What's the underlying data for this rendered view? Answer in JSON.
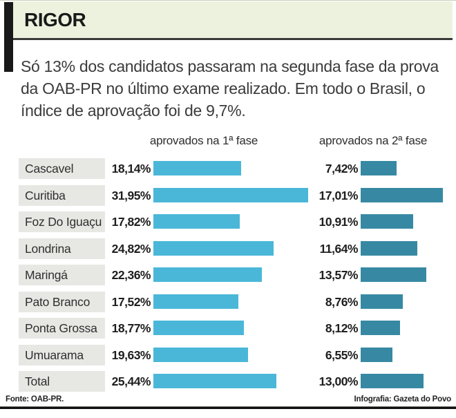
{
  "header": {
    "title": "RIGOR",
    "subtitle": "Só 13% dos candidatos passaram na segunda fase da prova da OAB-PR no último exame realizado. Em todo o Brasil, o índice de aprovação foi de 9,7%."
  },
  "chart_data": {
    "type": "bar",
    "orientation": "horizontal",
    "title": "RIGOR",
    "categories": [
      "Cascavel",
      "Curitiba",
      "Foz Do Iguaçu",
      "Londrina",
      "Maringá",
      "Pato Branco",
      "Ponta Grossa",
      "Umuarama",
      "Total"
    ],
    "series": [
      {
        "name": "aprovados na 1ª fase",
        "values": [
          18.14,
          31.95,
          17.82,
          24.82,
          22.36,
          17.52,
          18.77,
          19.63,
          25.44
        ],
        "labels": [
          "18,14%",
          "31,95%",
          "17,82%",
          "24,82%",
          "22,36%",
          "17,52%",
          "18,77%",
          "19,63%",
          "25,44%"
        ],
        "color": "#4ab7d8"
      },
      {
        "name": "aprovados na 2ª fase",
        "values": [
          7.42,
          17.01,
          10.91,
          11.64,
          13.57,
          8.76,
          8.12,
          6.55,
          13.0
        ],
        "labels": [
          "7,42%",
          "17,01%",
          "10,91%",
          "11,64%",
          "13,57%",
          "8,76%",
          "8,12%",
          "6,55%",
          "13,00%"
        ],
        "color": "#3789a3"
      }
    ],
    "value_format": "percent, comma decimal separator",
    "xlim": [
      0,
      33
    ],
    "grid": false,
    "legend_position": "column headers above bars"
  },
  "footer": {
    "source": "Fonte: OAB-PR.",
    "credit": "Infografia: Gazeta do Povo"
  },
  "colors": {
    "header_band_bg": "#edf2df",
    "accent_bar": "#191919",
    "label_cell_bg": "#e7e7e4",
    "bar_fase1": "#4ab7d8",
    "bar_fase2": "#3789a3",
    "rule": "#111111"
  }
}
